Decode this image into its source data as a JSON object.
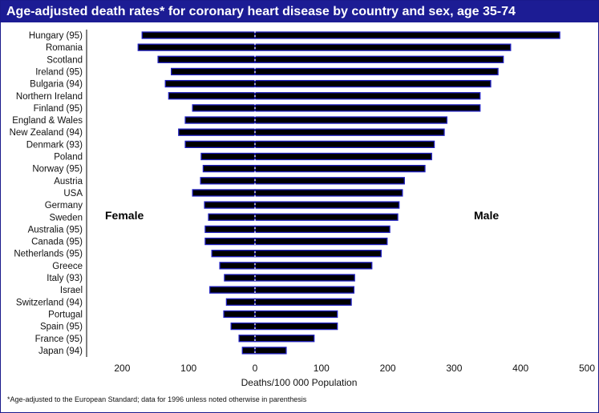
{
  "chart_data": {
    "type": "bar",
    "title": "Age-adjusted death rates* for coronary heart disease by country and sex, age 35-74",
    "xlabel": "Deaths/100 000 Population",
    "xlim": [
      -250,
      500
    ],
    "xticks": [
      -200,
      -100,
      0,
      100,
      200,
      300,
      400,
      500
    ],
    "xtick_labels": [
      "200",
      "100",
      "0",
      "100",
      "200",
      "300",
      "400",
      "500"
    ],
    "categories": [
      "Hungary (95)",
      "Romania",
      "Scotland",
      "Ireland (95)",
      "Bulgaria (94)",
      "Northern Ireland",
      "Finland (95)",
      "England & Wales",
      "New Zealand (94)",
      "Denmark (93)",
      "Poland",
      "Norway (95)",
      "Austria",
      "USA",
      "Germany",
      "Sweden",
      "Australia (95)",
      "Canada (95)",
      "Netherlands (95)",
      "Greece",
      "Italy (93)",
      "Israel",
      "Switzerland (94)",
      "Portugal",
      "Spain (95)",
      "France (95)",
      "Japan (94)"
    ],
    "series": [
      {
        "name": "Female",
        "values": [
          170,
          176,
          146,
          126,
          135,
          130,
          94,
          105,
          115,
          105,
          81,
          78,
          82,
          94,
          76,
          70,
          75,
          75,
          65,
          53,
          46,
          68,
          43,
          47,
          36,
          24,
          19
        ]
      },
      {
        "name": "Male",
        "values": [
          459,
          385,
          374,
          366,
          355,
          339,
          339,
          289,
          285,
          270,
          266,
          256,
          225,
          222,
          217,
          215,
          203,
          199,
          190,
          176,
          150,
          149,
          145,
          124,
          124,
          89,
          47
        ]
      }
    ],
    "colors": {
      "bar_fill": "#000000",
      "bar_stroke": "#2020c0",
      "header": "#1c1c94"
    },
    "footnote": "*Age-adjusted to the European Standard; data for 1996 unless noted otherwise in parenthesis"
  }
}
